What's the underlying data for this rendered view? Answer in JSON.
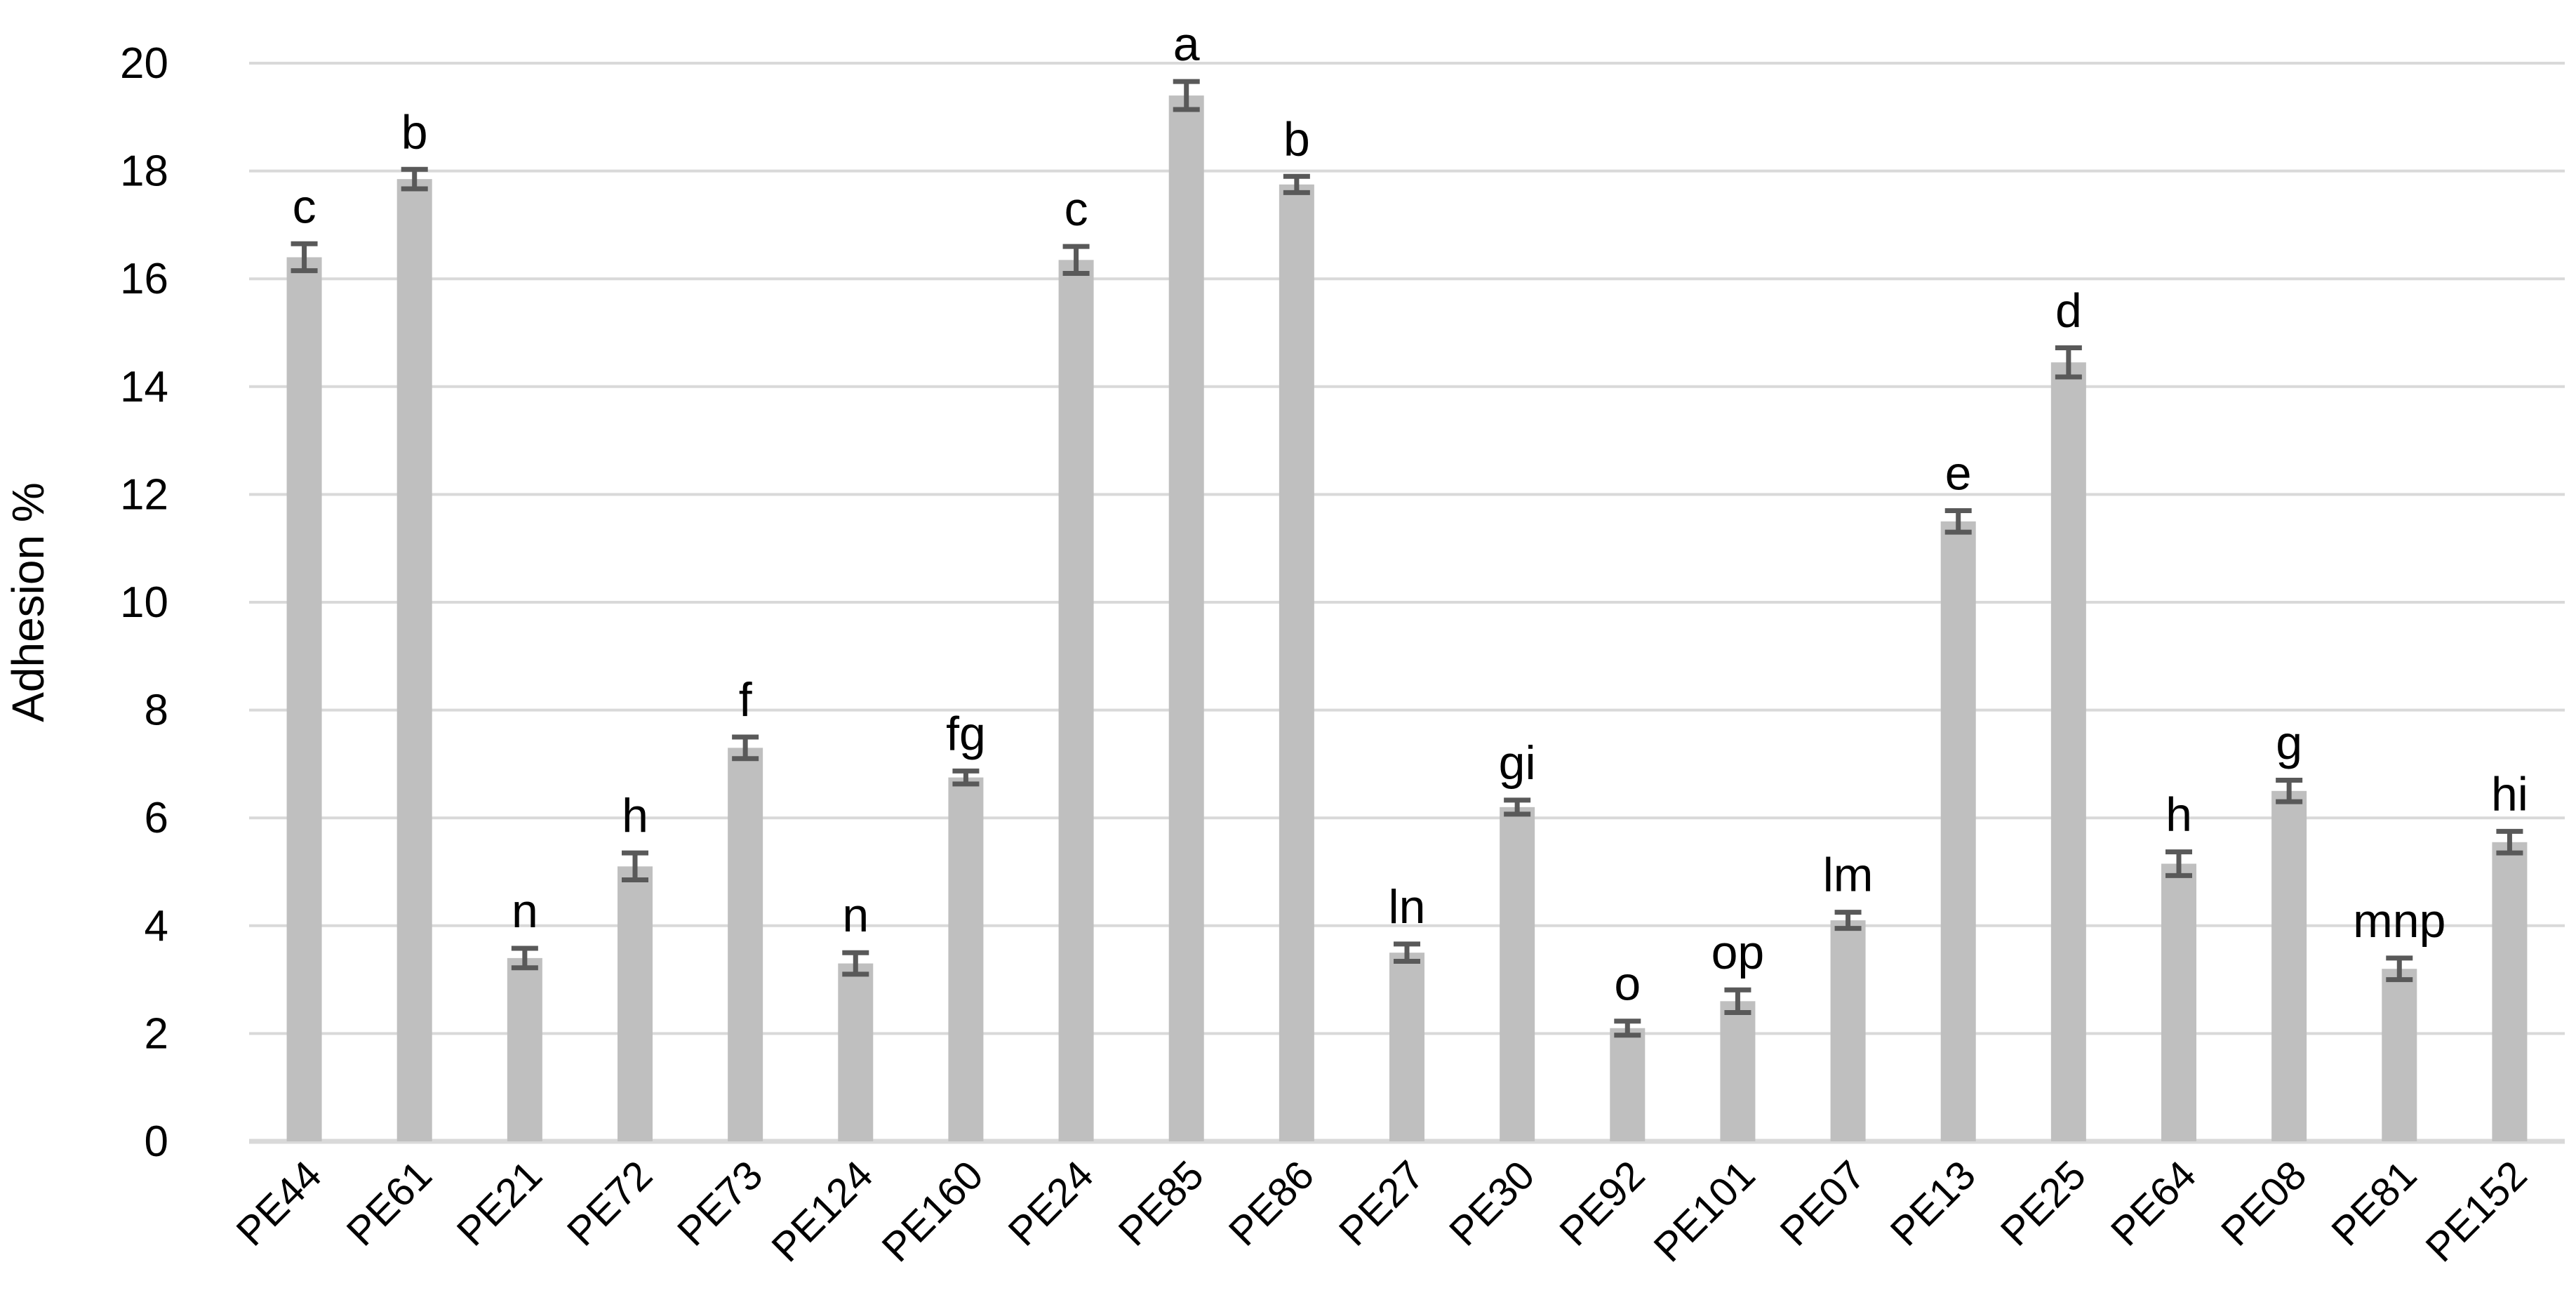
{
  "chart_data": {
    "type": "bar",
    "title": "",
    "xlabel": "",
    "ylabel": "Adhesion %",
    "ylim": [
      0,
      20
    ],
    "yticks": [
      0,
      2,
      4,
      6,
      8,
      10,
      12,
      14,
      16,
      18,
      20
    ],
    "grid": true,
    "legend": "none",
    "categories": [
      "PE44",
      "PE61",
      "PE21",
      "PE72",
      "PE73",
      "PE124",
      "PE160",
      "PE24",
      "PE85",
      "PE86",
      "PE27",
      "PE30",
      "PE92",
      "PE101",
      "PE07",
      "PE13",
      "PE25",
      "PE64",
      "PE08",
      "PE81",
      "PE152"
    ],
    "series": [
      {
        "name": "Adhesion %",
        "values": [
          16.4,
          17.85,
          3.4,
          5.1,
          7.3,
          3.3,
          6.75,
          16.35,
          19.4,
          17.75,
          3.5,
          6.2,
          2.1,
          2.6,
          4.1,
          11.5,
          14.45,
          5.15,
          6.5,
          3.2,
          5.55
        ],
        "error_bars": [
          0.25,
          0.18,
          0.18,
          0.25,
          0.2,
          0.2,
          0.12,
          0.25,
          0.26,
          0.15,
          0.16,
          0.13,
          0.13,
          0.21,
          0.15,
          0.2,
          0.27,
          0.22,
          0.2,
          0.2,
          0.2
        ]
      }
    ],
    "point_labels": [
      "c",
      "b",
      "n",
      "h",
      "f",
      "n",
      "fg",
      "c",
      "a",
      "b",
      "ln",
      "gi",
      "o",
      "op",
      "lm",
      "e",
      "d",
      "h",
      "g",
      "mnp",
      "hi"
    ],
    "colors": {
      "bar_fill": "#bfbfbf",
      "error_bar": "#595959",
      "gridline": "#d9d9d9",
      "axis_line": "#d9d9d9",
      "text": "#000000",
      "background": "#ffffff"
    }
  }
}
